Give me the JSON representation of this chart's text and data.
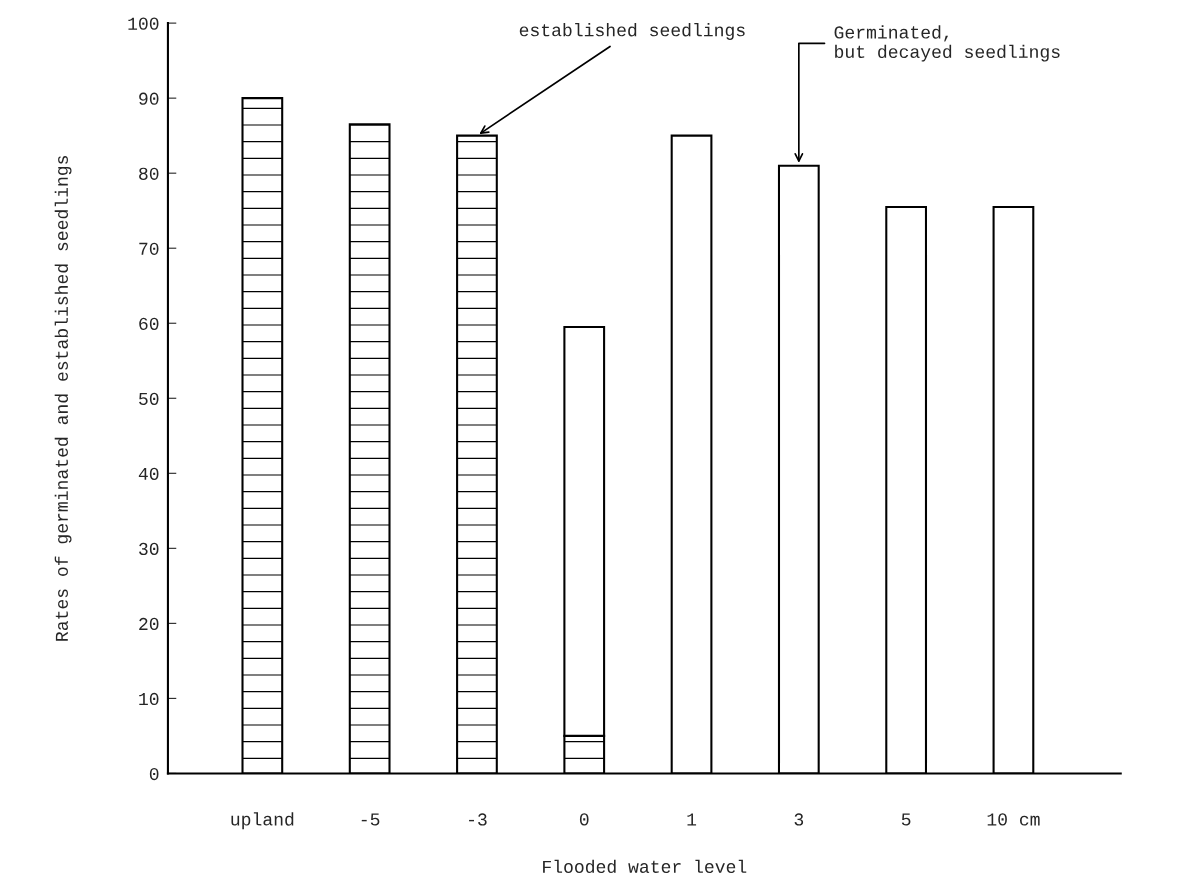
{
  "chart_data": {
    "type": "bar",
    "stacked": true,
    "categories": [
      "upland",
      "-5",
      "-3",
      "0",
      "1",
      "3",
      "5",
      "10 cm"
    ],
    "series": [
      {
        "color": "#ffffff",
        "values": [
          90,
          86.5,
          85,
          5,
          0,
          0,
          0,
          0
        ]
      },
      {
        "color": "#ffffff",
        "values": [
          0,
          0,
          0,
          54.5,
          85,
          81,
          75.5,
          75.5
        ]
      }
    ],
    "xlabel": "Flooded water level",
    "ylabel": "Rates of germinated and established seedlings",
    "ylim": [
      0,
      100
    ],
    "yticks": [
      0,
      10,
      20,
      30,
      40,
      50,
      60,
      70,
      80,
      90,
      100
    ],
    "annotations": [
      {
        "text": "established seedlings",
        "x": "-3",
        "y": 85
      },
      {
        "text": "Germinated,\nbut decayed seedlings",
        "x": "3",
        "y": 81
      }
    ],
    "grid": false,
    "legend": false
  }
}
